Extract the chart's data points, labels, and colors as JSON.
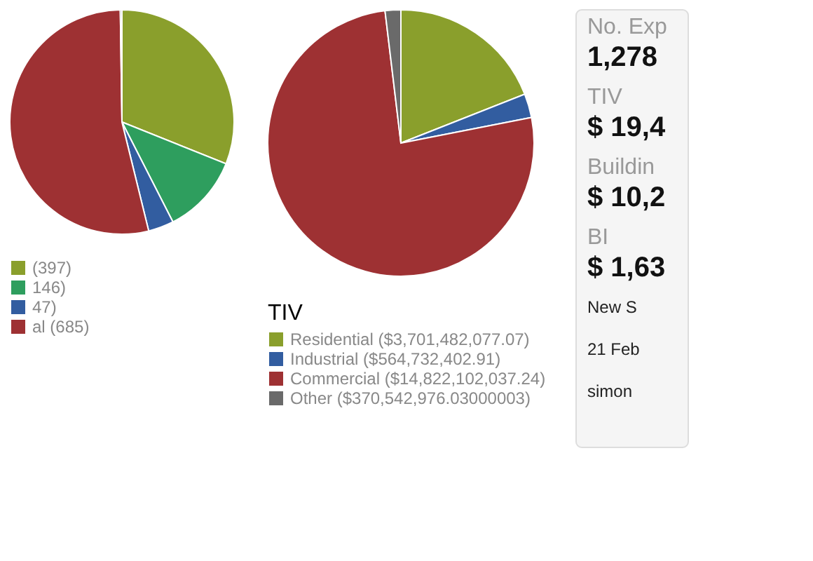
{
  "chart_data": [
    {
      "type": "pie",
      "categories": [
        "(397)",
        "146)",
        "47)",
        "al (685)",
        null
      ],
      "values": [
        397,
        146,
        47,
        685,
        3
      ],
      "colors": [
        "#8a9f2c",
        "#2e9e5e",
        "#325da0",
        "#9e3133",
        "#6a6a6a"
      ],
      "legend": "bottom"
    },
    {
      "type": "pie",
      "legend_title": "TIV",
      "categories": [
        "Residential ($3,701,482,077.07)",
        "Industrial ($564,732,402.91)",
        "Commercial ($14,822,102,037.24)",
        "Other ($370,542,976.03000003)"
      ],
      "values": [
        3701482077.07,
        564732402.91,
        14822102037.24,
        370542976.03000003
      ],
      "colors": [
        "#8a9f2c",
        "#325da0",
        "#9e3133",
        "#6a6a6a"
      ],
      "legend": "bottom"
    },
    {
      "type": "other",
      "annotations": [
        "No. Exp",
        "1,278",
        "TIV",
        "$ 19,4",
        "Buildin",
        "$ 10,2",
        "BI",
        "$ 1,63",
        "New S",
        "21 Feb",
        "simon"
      ]
    }
  ]
}
